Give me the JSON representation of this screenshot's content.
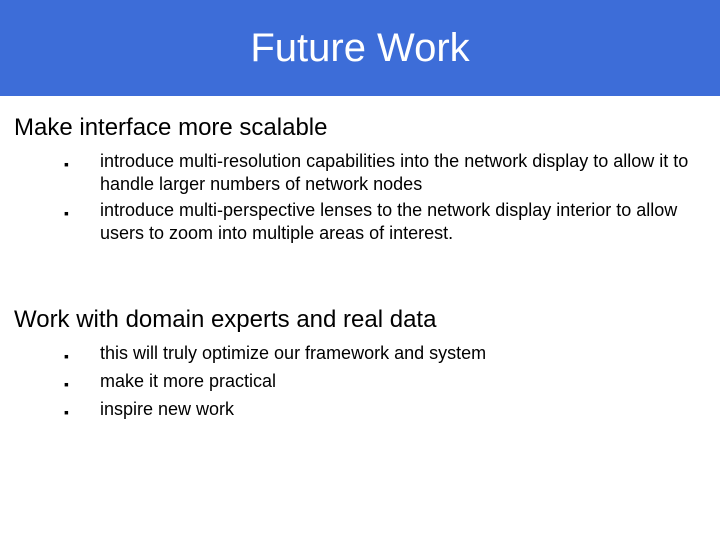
{
  "slide": {
    "title": "Future Work",
    "title_bar_color": "#3d6dd8",
    "title_text_color": "#ffffff",
    "title_fontsize": 40,
    "background_color": "#ffffff",
    "body_text_color": "#000000",
    "heading_fontsize": 24,
    "bullet_fontsize": 18,
    "bullet_marker": "▪",
    "sections": [
      {
        "heading": "Make interface more scalable",
        "bullets": [
          "introduce multi-resolution capabilities into the network display to allow it to handle larger numbers of network nodes",
          "introduce multi-perspective lenses to the network display interior to allow users to zoom into multiple areas of interest."
        ]
      },
      {
        "heading": "Work with domain experts and real data",
        "bullets": [
          "this will truly optimize our framework and system",
          "make it more practical",
          "inspire new work"
        ]
      }
    ]
  }
}
